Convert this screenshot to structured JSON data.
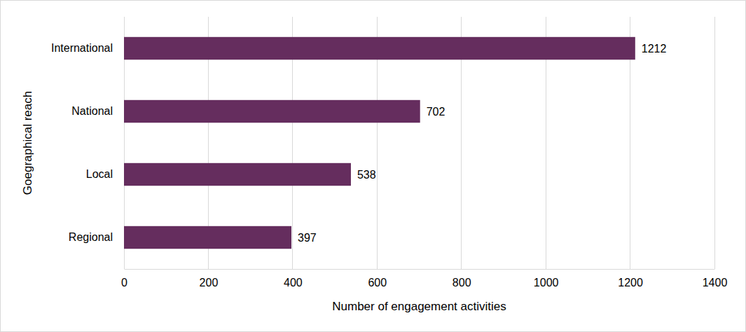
{
  "chart_data": {
    "type": "bar",
    "orientation": "horizontal",
    "categories": [
      "International",
      "National",
      "Local",
      "Regional"
    ],
    "values": [
      1212,
      702,
      538,
      397
    ],
    "color": "#652d5e",
    "xlim": [
      0,
      1400
    ],
    "xticks": [
      0,
      200,
      400,
      600,
      800,
      1000,
      1200,
      1400
    ],
    "grid": true,
    "data_labels": true,
    "x_label": "Number of engagement activities",
    "y_label": "Goegraphical reach"
  }
}
